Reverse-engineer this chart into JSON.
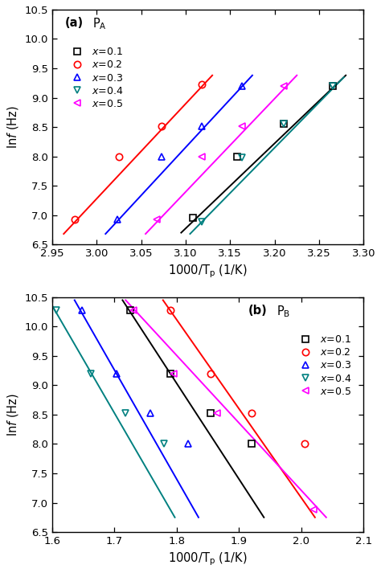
{
  "panel_a": {
    "title": "(a)",
    "title_PA": "P",
    "xlabel": "1000/T$_\\mathregular{p}$ (1/K)",
    "ylabel": "ln$f$ (Hz)",
    "xlim": [
      2.95,
      3.3
    ],
    "ylim": [
      6.5,
      10.5
    ],
    "xticks": [
      2.95,
      3.0,
      3.05,
      3.1,
      3.15,
      3.2,
      3.25,
      3.3
    ],
    "yticks": [
      6.5,
      7.0,
      7.5,
      8.0,
      8.5,
      9.0,
      9.5,
      10.0,
      10.5
    ],
    "series": [
      {
        "label": "0.1",
        "color": "black",
        "marker": "s",
        "markersize": 6,
        "x": [
          3.108,
          3.158,
          3.21,
          3.265
        ],
        "y": [
          6.95,
          8.0,
          8.55,
          9.2
        ],
        "fit_x": [
          3.095,
          3.28
        ],
        "fit_y": [
          6.7,
          9.38
        ]
      },
      {
        "label": "0.2",
        "color": "red",
        "marker": "o",
        "markersize": 6,
        "x": [
          2.975,
          3.025,
          3.073,
          3.118
        ],
        "y": [
          6.92,
          8.0,
          8.52,
          9.22
        ],
        "fit_x": [
          2.963,
          3.13
        ],
        "fit_y": [
          6.68,
          9.38
        ]
      },
      {
        "label": "0.3",
        "color": "blue",
        "marker": "^",
        "markersize": 6,
        "x": [
          3.023,
          3.073,
          3.118,
          3.163
        ],
        "y": [
          6.92,
          8.0,
          8.52,
          9.2
        ],
        "fit_x": [
          3.01,
          3.175
        ],
        "fit_y": [
          6.68,
          9.38
        ]
      },
      {
        "label": "0.4",
        "color": "#008080",
        "marker": "v",
        "markersize": 6,
        "x": [
          3.118,
          3.163,
          3.21,
          3.265
        ],
        "y": [
          6.88,
          7.98,
          8.55,
          9.2
        ],
        "fit_x": [
          3.105,
          3.278
        ],
        "fit_y": [
          6.68,
          9.35
        ]
      },
      {
        "label": "0.5",
        "color": "magenta",
        "marker": "<",
        "markersize": 6,
        "x": [
          3.068,
          3.118,
          3.163,
          3.21
        ],
        "y": [
          6.92,
          8.0,
          8.52,
          9.2
        ],
        "fit_x": [
          3.055,
          3.225
        ],
        "fit_y": [
          6.68,
          9.38
        ]
      }
    ]
  },
  "panel_b": {
    "title": "(b)",
    "title_PB": "P",
    "xlabel": "1000/T$_\\mathregular{p}$ (1/K)",
    "ylabel": "ln$f$ (Hz)",
    "xlim": [
      1.6,
      2.1
    ],
    "ylim": [
      6.5,
      10.5
    ],
    "xticks": [
      1.6,
      1.7,
      1.8,
      1.9,
      2.0,
      2.1
    ],
    "yticks": [
      6.5,
      7.0,
      7.5,
      8.0,
      8.5,
      9.0,
      9.5,
      10.0,
      10.5
    ],
    "series": [
      {
        "label": "0.1",
        "color": "black",
        "marker": "s",
        "markersize": 6,
        "x": [
          1.725,
          1.79,
          1.855,
          1.92
        ],
        "y": [
          10.28,
          9.2,
          8.52,
          8.0
        ],
        "fit_x": [
          1.713,
          1.94
        ],
        "fit_y": [
          10.45,
          6.75
        ]
      },
      {
        "label": "0.2",
        "color": "red",
        "marker": "o",
        "markersize": 6,
        "x": [
          1.79,
          1.855,
          1.92,
          2.005
        ],
        "y": [
          10.28,
          9.2,
          8.52,
          8.0
        ],
        "fit_x": [
          1.778,
          2.022
        ],
        "fit_y": [
          10.45,
          6.75
        ]
      },
      {
        "label": "0.3",
        "color": "blue",
        "marker": "^",
        "markersize": 6,
        "x": [
          1.648,
          1.703,
          1.758,
          1.818
        ],
        "y": [
          10.28,
          9.2,
          8.52,
          8.0
        ],
        "fit_x": [
          1.636,
          1.835
        ],
        "fit_y": [
          10.45,
          6.75
        ]
      },
      {
        "label": "0.4",
        "color": "#008080",
        "marker": "v",
        "markersize": 6,
        "x": [
          1.607,
          1.662,
          1.718,
          1.78
        ],
        "y": [
          10.28,
          9.2,
          8.52,
          8.0
        ],
        "fit_x": [
          1.595,
          1.797
        ],
        "fit_y": [
          10.45,
          6.75
        ]
      },
      {
        "label": "0.5",
        "color": "magenta",
        "marker": "<",
        "markersize": 6,
        "x": [
          1.73,
          1.795,
          1.865,
          2.02
        ],
        "y": [
          10.28,
          9.2,
          8.52,
          6.88
        ],
        "fit_x": [
          1.718,
          2.04
        ],
        "fit_y": [
          10.45,
          6.75
        ]
      }
    ]
  }
}
